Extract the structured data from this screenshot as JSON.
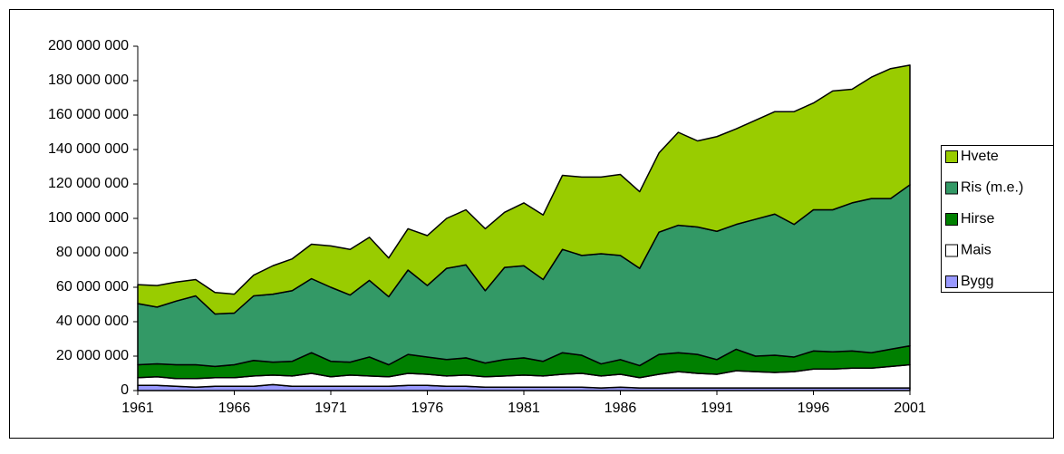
{
  "chart_data": {
    "type": "stacked_area",
    "x": [
      1961,
      1962,
      1963,
      1964,
      1965,
      1966,
      1967,
      1968,
      1969,
      1970,
      1971,
      1972,
      1973,
      1974,
      1975,
      1976,
      1977,
      1978,
      1979,
      1980,
      1981,
      1982,
      1983,
      1984,
      1985,
      1986,
      1987,
      1988,
      1989,
      1990,
      1991,
      1992,
      1993,
      1994,
      1995,
      1996,
      1997,
      1998,
      1999,
      2000,
      2001
    ],
    "xlim": [
      1961,
      2001
    ],
    "xticks": [
      1961,
      1966,
      1971,
      1976,
      1981,
      1986,
      1991,
      1996,
      2001
    ],
    "ylim": [
      0,
      200000000
    ],
    "yticks": [
      {
        "value": 0,
        "label": "0"
      },
      {
        "value": 20000000,
        "label": "20 000 000"
      },
      {
        "value": 40000000,
        "label": "40 000 000"
      },
      {
        "value": 60000000,
        "label": "60 000 000"
      },
      {
        "value": 80000000,
        "label": "80 000 000"
      },
      {
        "value": 100000000,
        "label": "100 000 000"
      },
      {
        "value": 120000000,
        "label": "120 000 000"
      },
      {
        "value": 140000000,
        "label": "140 000 000"
      },
      {
        "value": 160000000,
        "label": "160 000 000"
      },
      {
        "value": 180000000,
        "label": "180 000 000"
      },
      {
        "value": 200000000,
        "label": "200 000 000"
      }
    ],
    "legend": "right",
    "series": [
      {
        "name": "Bygg",
        "color": "#9999ff",
        "values": [
          3000000,
          3000000,
          2500000,
          2000000,
          2500000,
          2500000,
          2500000,
          3500000,
          2500000,
          2500000,
          2500000,
          2500000,
          2500000,
          2500000,
          3000000,
          3000000,
          2500000,
          2500000,
          2000000,
          2000000,
          2000000,
          2000000,
          2000000,
          2000000,
          1500000,
          2000000,
          1500000,
          1500000,
          1500000,
          1500000,
          1500000,
          1500000,
          1500000,
          1500000,
          1500000,
          1500000,
          1500000,
          1500000,
          1500000,
          1500000,
          1500000
        ]
      },
      {
        "name": "Mais",
        "color": "#ffffff",
        "values": [
          4500000,
          5000000,
          4500000,
          5000000,
          5000000,
          5000000,
          6000000,
          5500000,
          6000000,
          7500000,
          5500000,
          6500000,
          6000000,
          5500000,
          7000000,
          6500000,
          6000000,
          6500000,
          6000000,
          6500000,
          7000000,
          6500000,
          7500000,
          8000000,
          7000000,
          7500000,
          6000000,
          8000000,
          9500000,
          8500000,
          8000000,
          10000000,
          9500000,
          9000000,
          9500000,
          11000000,
          11000000,
          11500000,
          11500000,
          12500000,
          13500000
        ]
      },
      {
        "name": "Hirse",
        "color": "#008000",
        "values": [
          7500000,
          7500000,
          8000000,
          8000000,
          6500000,
          7500000,
          9000000,
          7500000,
          8500000,
          12000000,
          9000000,
          7500000,
          11000000,
          7000000,
          11000000,
          10000000,
          9500000,
          10000000,
          8000000,
          9500000,
          10000000,
          8500000,
          12500000,
          10500000,
          7000000,
          8500000,
          7000000,
          11500000,
          11000000,
          11000000,
          8500000,
          12500000,
          9000000,
          10000000,
          8500000,
          10500000,
          10000000,
          10000000,
          9000000,
          10000000,
          11000000
        ]
      },
      {
        "name": "Ris (m.e.)",
        "color": "#339966",
        "values": [
          35500000,
          33000000,
          37000000,
          40000000,
          30500000,
          30000000,
          37500000,
          39500000,
          41000000,
          43000000,
          43000000,
          39000000,
          44500000,
          39500000,
          49000000,
          41500000,
          53000000,
          54000000,
          42000000,
          53500000,
          53500000,
          47500000,
          60000000,
          58000000,
          64000000,
          60500000,
          56500000,
          71000000,
          74000000,
          74000000,
          74500000,
          72500000,
          79500000,
          82000000,
          77000000,
          82000000,
          82500000,
          86000000,
          89500000,
          87500000,
          93500000
        ]
      },
      {
        "name": "Hvete",
        "color": "#99cc00",
        "values": [
          11000000,
          12500000,
          11000000,
          9500000,
          12500000,
          11000000,
          12000000,
          16500000,
          18500000,
          20000000,
          24000000,
          26500000,
          25000000,
          22500000,
          24000000,
          29000000,
          29000000,
          32000000,
          36000000,
          32000000,
          36500000,
          37500000,
          43000000,
          45500000,
          44500000,
          47000000,
          44500000,
          46000000,
          54000000,
          50000000,
          55000000,
          55500000,
          57500000,
          59500000,
          65500000,
          62000000,
          69000000,
          66000000,
          70500000,
          75500000,
          69500000
        ]
      }
    ]
  }
}
